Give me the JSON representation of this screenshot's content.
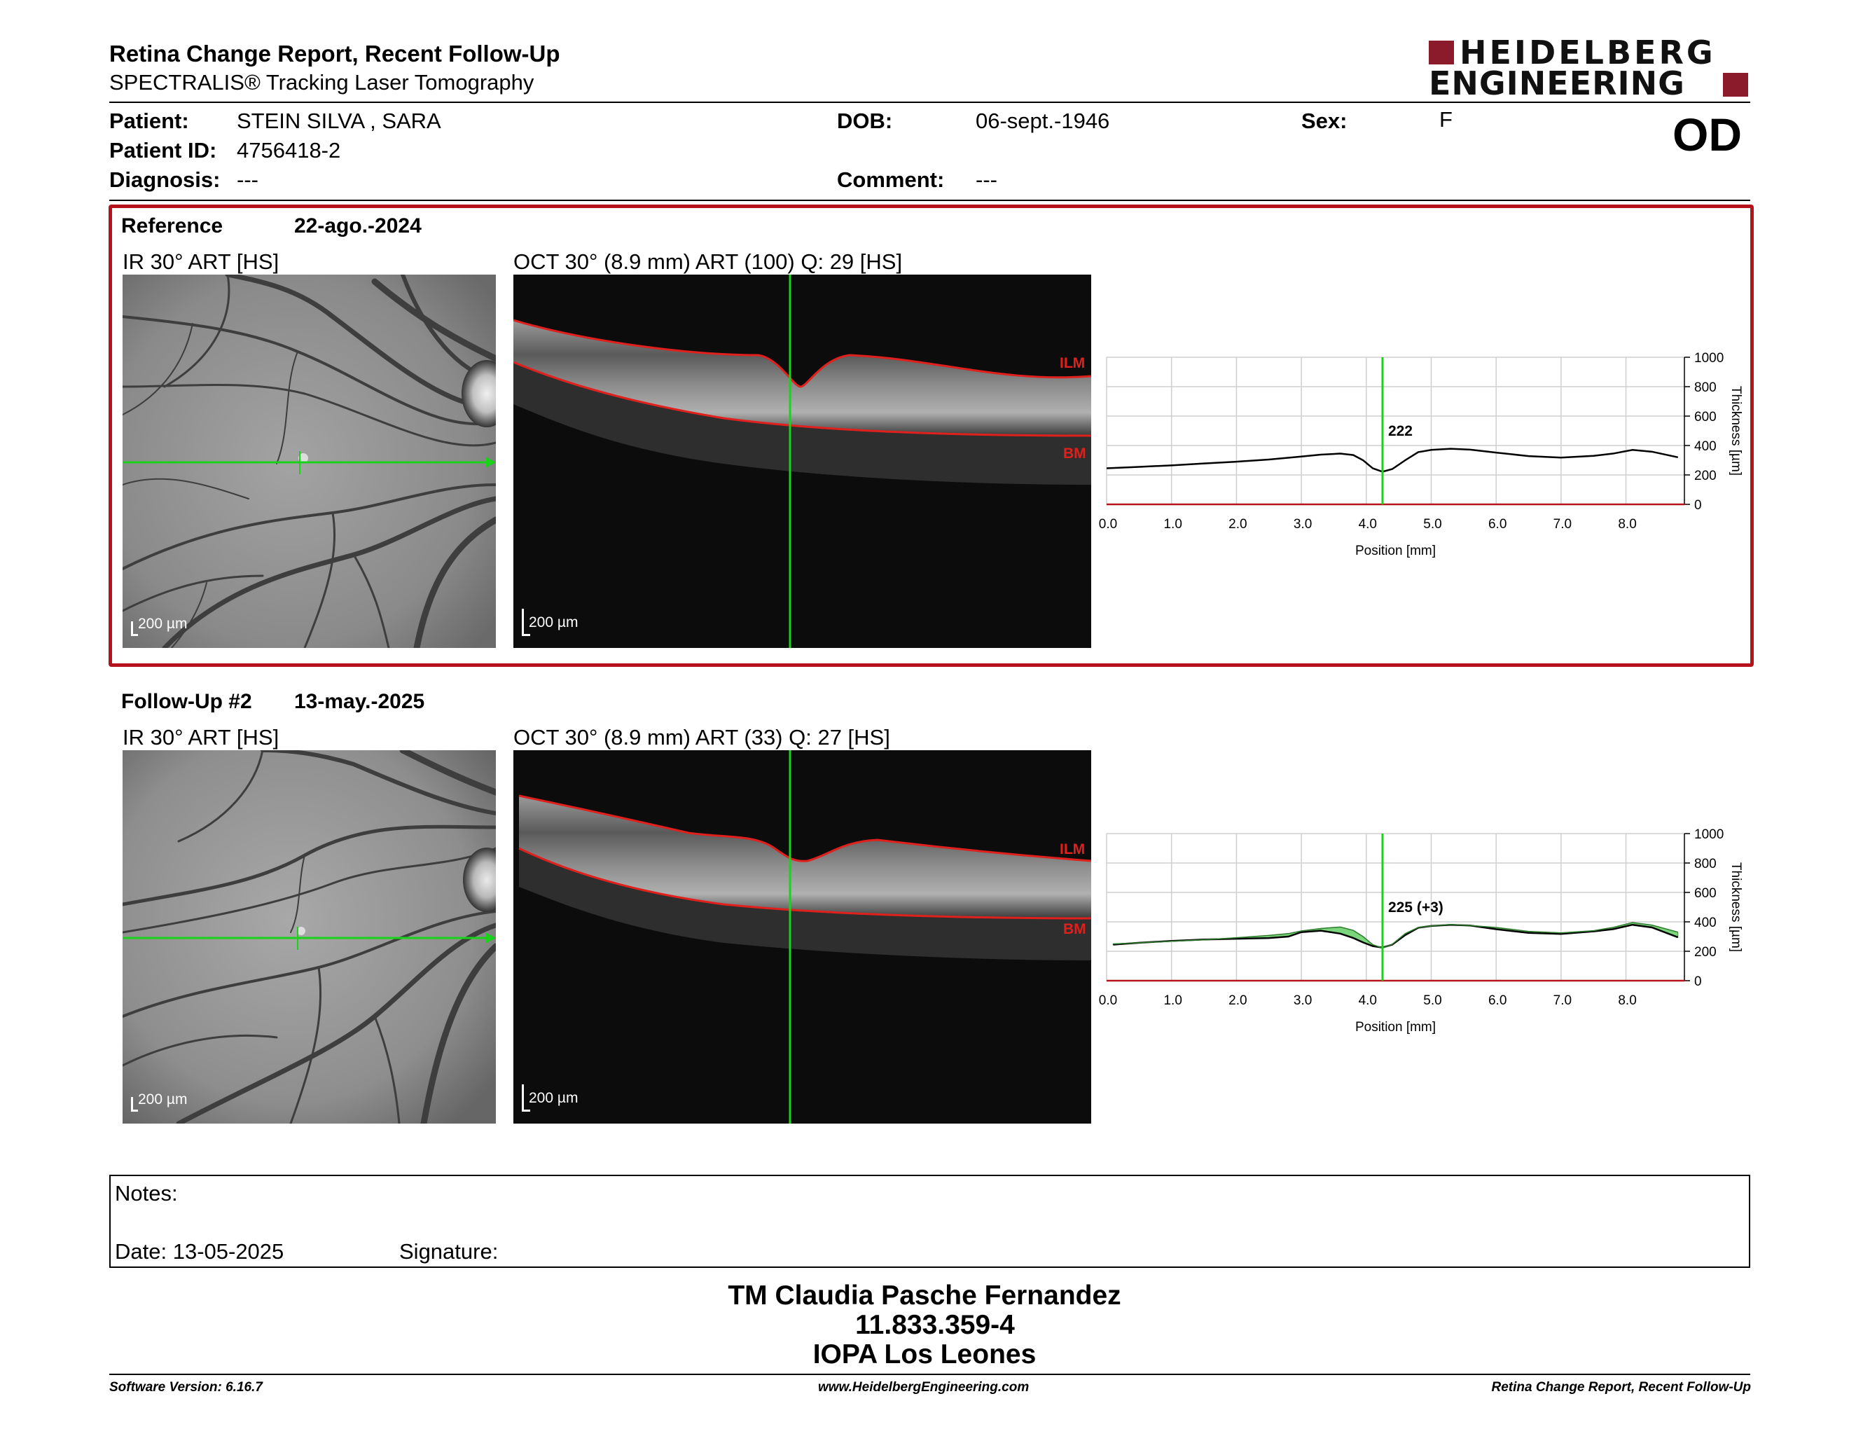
{
  "header": {
    "title": "Retina Change Report, Recent Follow-Up",
    "subtitle": "SPECTRALIS® Tracking Laser Tomography",
    "logo_line1": "HEIDELBERG",
    "logo_line2": "ENGINEERING",
    "eye": "OD"
  },
  "patient": {
    "name_label": "Patient:",
    "name": "STEIN SILVA , SARA",
    "id_label": "Patient ID:",
    "id": "4756418-2",
    "diagnosis_label": "Diagnosis:",
    "diagnosis": "---",
    "dob_label": "DOB:",
    "dob": "06-sept.-1946",
    "comment_label": "Comment:",
    "comment": "---",
    "sex_label": "Sex:",
    "sex": "F"
  },
  "reference": {
    "label": "Reference",
    "date": "22-ago.-2024",
    "ir_title": "IR 30° ART [HS]",
    "oct_title": "OCT 30° (8.9 mm) ART (100) Q: 29 [HS]",
    "ir_scale": "200 µm",
    "oct_scale": "200 µm",
    "ilm": "ILM",
    "bm": "BM"
  },
  "followup": {
    "label": "Follow-Up #2",
    "date": "13-may.-2025",
    "ir_title": "IR 30° ART [HS]",
    "oct_title": "OCT 30° (8.9 mm) ART (33) Q: 27 [HS]",
    "ir_scale": "200 µm",
    "oct_scale": "200 µm",
    "ilm": "ILM",
    "bm": "BM"
  },
  "chart_data": [
    {
      "type": "line",
      "xlabel": "Position [mm]",
      "ylabel": "Thickness [µm]",
      "xlim": [
        0,
        8.9
      ],
      "ylim": [
        0,
        1000
      ],
      "x_ticks": [
        "0.0",
        "1.0",
        "2.0",
        "3.0",
        "4.0",
        "5.0",
        "6.0",
        "7.0",
        "8.0"
      ],
      "y_ticks": [
        "0",
        "200",
        "400",
        "600",
        "800",
        "1000"
      ],
      "cursor_x": 4.25,
      "cursor_label": "222",
      "series": [
        {
          "x": [
            0.0,
            0.5,
            1.0,
            1.5,
            2.0,
            2.5,
            3.0,
            3.3,
            3.6,
            3.8,
            3.95,
            4.1,
            4.25,
            4.4,
            4.6,
            4.8,
            5.0,
            5.3,
            5.6,
            6.0,
            6.5,
            7.0,
            7.5,
            7.8,
            8.1,
            8.4,
            8.8
          ],
          "y": [
            245,
            255,
            265,
            278,
            290,
            305,
            325,
            338,
            345,
            335,
            300,
            245,
            222,
            240,
            300,
            355,
            370,
            378,
            372,
            352,
            328,
            318,
            330,
            345,
            370,
            358,
            320
          ]
        }
      ]
    },
    {
      "type": "line",
      "xlabel": "Position [mm]",
      "ylabel": "Thickness [µm]",
      "xlim": [
        0,
        8.9
      ],
      "ylim": [
        0,
        1000
      ],
      "x_ticks": [
        "0.0",
        "1.0",
        "2.0",
        "3.0",
        "4.0",
        "5.0",
        "6.0",
        "7.0",
        "8.0"
      ],
      "y_ticks": [
        "0",
        "200",
        "400",
        "600",
        "800",
        "1000"
      ],
      "cursor_x": 4.25,
      "cursor_label": "225 (+3)",
      "series": [
        {
          "x": [
            0.1,
            0.5,
            1.0,
            1.5,
            2.0,
            2.5,
            2.8,
            3.0,
            3.3,
            3.6,
            3.8,
            3.95,
            4.1,
            4.25,
            4.4,
            4.6,
            4.8,
            5.0,
            5.3,
            5.6,
            6.0,
            6.5,
            7.0,
            7.5,
            7.8,
            8.1,
            8.4,
            8.8
          ],
          "y": [
            245,
            258,
            270,
            280,
            285,
            290,
            300,
            330,
            340,
            320,
            290,
            260,
            235,
            225,
            245,
            310,
            360,
            372,
            380,
            375,
            350,
            325,
            318,
            335,
            350,
            380,
            362,
            295
          ]
        },
        {
          "x": [
            0.1,
            0.5,
            1.0,
            1.5,
            2.0,
            2.5,
            2.8,
            3.0,
            3.3,
            3.6,
            3.8,
            3.95,
            4.1,
            4.25,
            4.4,
            4.6,
            4.8,
            5.0,
            5.3,
            5.6,
            6.0,
            6.5,
            7.0,
            7.5,
            7.8,
            8.1,
            8.4,
            8.8
          ],
          "y": [
            250,
            258,
            268,
            278,
            292,
            308,
            320,
            338,
            355,
            365,
            342,
            300,
            245,
            222,
            248,
            320,
            362,
            372,
            382,
            375,
            362,
            335,
            325,
            340,
            362,
            395,
            378,
            330
          ]
        }
      ]
    }
  ],
  "notes": {
    "label": "Notes:",
    "date": "Date: 13-05-2025",
    "signature": "Signature:"
  },
  "signature_block": {
    "name": "TM Claudia Pasche Fernandez",
    "id": "11.833.359-4",
    "place": "IOPA Los Leones"
  },
  "footer": {
    "software": "Software Version: 6.16.7",
    "website": "www.HeidelbergEngineering.com",
    "report": "Retina Change Report, Recent Follow-Up"
  },
  "colors": {
    "frame_red": "#b5121b",
    "logo_red": "#8b1b2b",
    "cursor_green": "#19d219",
    "diff_green": "#7bd67b",
    "layer_red": "#e0201c"
  }
}
